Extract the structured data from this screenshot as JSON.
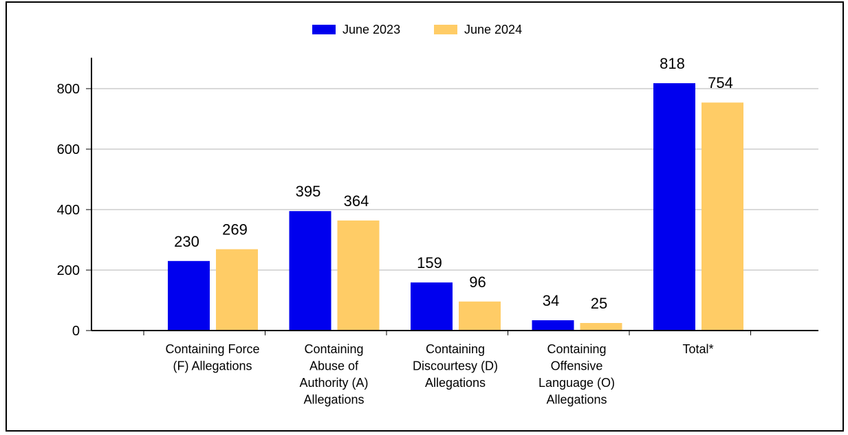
{
  "chart_data": {
    "type": "bar",
    "categories": [
      [
        "Containing Force",
        "(F) Allegations"
      ],
      [
        "Containing",
        "Abuse of",
        "Authority (A)",
        "Allegations"
      ],
      [
        "Containing",
        "Discourtesy (D)",
        "Allegations"
      ],
      [
        "Containing",
        "Offensive",
        "Language (O)",
        "Allegations"
      ],
      [
        "Total*"
      ]
    ],
    "series": [
      {
        "name": "June 2023",
        "color": "#0000ee",
        "values": [
          230,
          395,
          159,
          34,
          818
        ]
      },
      {
        "name": "June 2024",
        "color": "#ffcc66",
        "values": [
          269,
          364,
          96,
          25,
          754
        ]
      }
    ],
    "yticks": [
      0,
      200,
      400,
      600,
      800
    ],
    "ylim": [
      0,
      900
    ],
    "grid": true,
    "legend": "top-center"
  }
}
